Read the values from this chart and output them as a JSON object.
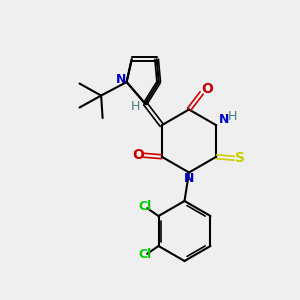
{
  "bg_color": "#efefef",
  "bond_color": "#000000",
  "N_color": "#0000cc",
  "O_color": "#cc0000",
  "S_color": "#cccc00",
  "Cl_color": "#00cc00",
  "H_color": "#408080",
  "figsize": [
    3.0,
    3.0
  ],
  "dpi": 100,
  "xlim": [
    0,
    10
  ],
  "ylim": [
    0,
    10
  ]
}
